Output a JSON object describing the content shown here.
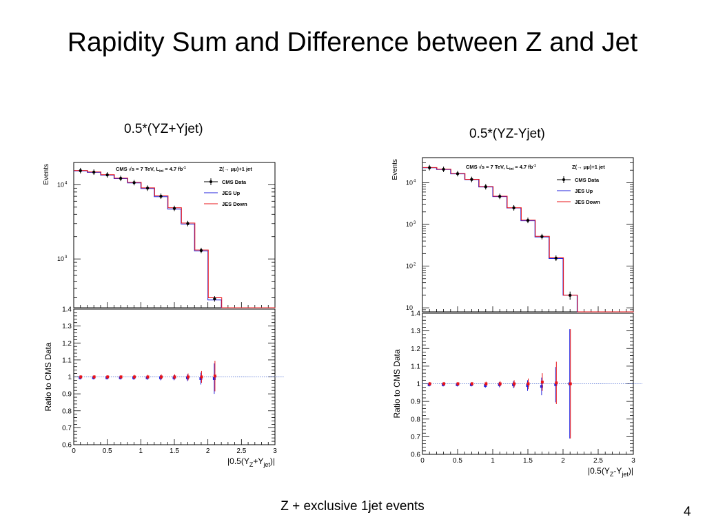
{
  "slide": {
    "title": "Rapidity Sum and Difference between Z and Jet",
    "footer": "Z + exclusive 1jet events",
    "page_number": "4"
  },
  "colors": {
    "data": "#000000",
    "jes_up": "#2222dd",
    "jes_down": "#e8141a",
    "reference_line": "#3355cc"
  },
  "chart_data": [
    {
      "type": "line",
      "caption": "0.5*(YZ+Yjet)",
      "xlabel": "|0.5(Y",
      "xlabel_sub1": "Z",
      "xlabel_mid": "+Y",
      "xlabel_sub2": "jet",
      "xlabel_end": ")|",
      "xlim": [
        0,
        3
      ],
      "x_ticks": [
        "0",
        "0.5",
        "1",
        "1.5",
        "2",
        "2.5",
        "3"
      ],
      "top": {
        "ylabel": "Events",
        "log_y": true,
        "ylim": [
          220,
          20000
        ],
        "y_ticks": [
          {
            "label": "10",
            "exp": "3",
            "value": 1000
          },
          {
            "label": "10",
            "exp": "4",
            "value": 10000
          }
        ],
        "legend_header": "CMS  √s = 7 TeV, L",
        "legend_header_sub": "int",
        "legend_header_tail": " = 4.7 fb",
        "legend_header_exp": "-1",
        "legend_title": "Z(→ μμ)+1 jet",
        "legend": [
          "CMS Data",
          "JES Up",
          "JES Down"
        ],
        "bin_edges": [
          0,
          0.2,
          0.4,
          0.6,
          0.8,
          1.0,
          1.2,
          1.4,
          1.6,
          1.8,
          2.0,
          2.2,
          3.0
        ],
        "x": [
          0.1,
          0.3,
          0.5,
          0.7,
          0.9,
          1.1,
          1.3,
          1.5,
          1.7,
          1.9,
          2.1
        ],
        "series": [
          {
            "name": "CMS Data",
            "values": [
              15500,
              14800,
              13600,
              12200,
              10700,
              9000,
              7000,
              4800,
              3000,
              1300,
              290
            ]
          },
          {
            "name": "JES Up",
            "values": [
              15400,
              14700,
              13500,
              12100,
              10600,
              8900,
              6900,
              4700,
              2950,
              1280,
              280,
              0
            ]
          },
          {
            "name": "JES Down",
            "values": [
              15600,
              14900,
              13700,
              12300,
              10800,
              9100,
              7100,
              4900,
              3050,
              1320,
              300,
              0
            ]
          }
        ]
      },
      "bottom": {
        "ylabel": "Ratio to CMS Data",
        "ylim": [
          0.6,
          1.4
        ],
        "y_ticks": [
          "0.6",
          "0.7",
          "0.8",
          "0.9",
          "1",
          "1.1",
          "1.2",
          "1.3",
          "1.4"
        ],
        "x": [
          0.1,
          0.3,
          0.5,
          0.7,
          0.9,
          1.1,
          1.3,
          1.5,
          1.7,
          1.9,
          2.1
        ],
        "series": [
          {
            "name": "JES Up",
            "values": [
              0.995,
              0.995,
              0.995,
              0.995,
              0.995,
              0.995,
              0.995,
              0.995,
              0.995,
              0.99,
              0.99
            ],
            "err": [
              0.01,
              0.01,
              0.01,
              0.01,
              0.012,
              0.012,
              0.015,
              0.015,
              0.02,
              0.035,
              0.09
            ]
          },
          {
            "name": "JES Down",
            "values": [
              1.0,
              1.0,
              1.0,
              1.0,
              1.0,
              1.0,
              1.0,
              1.0,
              1.0,
              1.0,
              1.005
            ],
            "err": [
              0.01,
              0.01,
              0.01,
              0.01,
              0.012,
              0.012,
              0.015,
              0.015,
              0.02,
              0.035,
              0.09
            ]
          }
        ]
      }
    },
    {
      "type": "line",
      "caption": "0.5*(YZ-Yjet)",
      "xlabel": "|0.5(Y",
      "xlabel_sub1": "Z",
      "xlabel_mid": "-Y",
      "xlabel_sub2": "jet",
      "xlabel_end": ")|",
      "xlim": [
        0,
        3
      ],
      "x_ticks": [
        "0",
        "0.5",
        "1",
        "1.5",
        "2",
        "2.5",
        "3"
      ],
      "top": {
        "ylabel": "Events",
        "log_y": true,
        "ylim": [
          8,
          40000
        ],
        "y_ticks": [
          {
            "label": "10",
            "exp": "",
            "value": 10
          },
          {
            "label": "10",
            "exp": "2",
            "value": 100
          },
          {
            "label": "10",
            "exp": "3",
            "value": 1000
          },
          {
            "label": "10",
            "exp": "4",
            "value": 10000
          }
        ],
        "legend_header": "CMS  √s = 7 TeV, L",
        "legend_header_sub": "int",
        "legend_header_tail": " = 4.7 fb",
        "legend_header_exp": "-1",
        "legend_title": "Z(→ μμ)+1 jet",
        "legend": [
          "CMS Data",
          "JES Up",
          "JES Down"
        ],
        "bin_edges": [
          0,
          0.2,
          0.4,
          0.6,
          0.8,
          1.0,
          1.2,
          1.4,
          1.6,
          1.8,
          2.0,
          2.2,
          3.0
        ],
        "x": [
          0.1,
          0.3,
          0.5,
          0.7,
          0.9,
          1.1,
          1.3,
          1.5,
          1.7,
          1.9,
          2.1
        ],
        "series": [
          {
            "name": "CMS Data",
            "values": [
              23000,
              21000,
              16500,
              12000,
              8000,
              4700,
              2500,
              1250,
              510,
              155,
              20
            ]
          },
          {
            "name": "JES Up",
            "values": [
              22800,
              20800,
              16300,
              11900,
              7900,
              4650,
              2480,
              1230,
              500,
              152,
              20,
              0
            ]
          },
          {
            "name": "JES Down",
            "values": [
              23200,
              21200,
              16700,
              12100,
              8100,
              4750,
              2520,
              1270,
              520,
              158,
              20,
              0
            ]
          }
        ]
      },
      "bottom": {
        "ylabel": "Ratio to CMS Data",
        "ylim": [
          0.6,
          1.4
        ],
        "y_ticks": [
          "0.6",
          "0.7",
          "0.8",
          "0.9",
          "1",
          "1.1",
          "1.2",
          "1.3",
          "1.4"
        ],
        "x": [
          0.1,
          0.3,
          0.5,
          0.7,
          0.9,
          1.1,
          1.3,
          1.5,
          1.7,
          1.9,
          2.1
        ],
        "series": [
          {
            "name": "JES Up",
            "values": [
              0.995,
              0.995,
              0.995,
              0.995,
              0.99,
              0.995,
              0.995,
              0.99,
              0.985,
              0.995,
              1.0
            ],
            "err": [
              0.01,
              0.01,
              0.01,
              0.01,
              0.012,
              0.015,
              0.02,
              0.03,
              0.05,
              0.1,
              0.31
            ]
          },
          {
            "name": "JES Down",
            "values": [
              1.0,
              1.0,
              1.0,
              1.0,
              1.0,
              1.0,
              1.0,
              1.0,
              1.01,
              1.005,
              1.0
            ],
            "err": [
              0.01,
              0.01,
              0.01,
              0.01,
              0.012,
              0.015,
              0.02,
              0.03,
              0.05,
              0.12,
              0.31
            ]
          }
        ]
      }
    }
  ]
}
